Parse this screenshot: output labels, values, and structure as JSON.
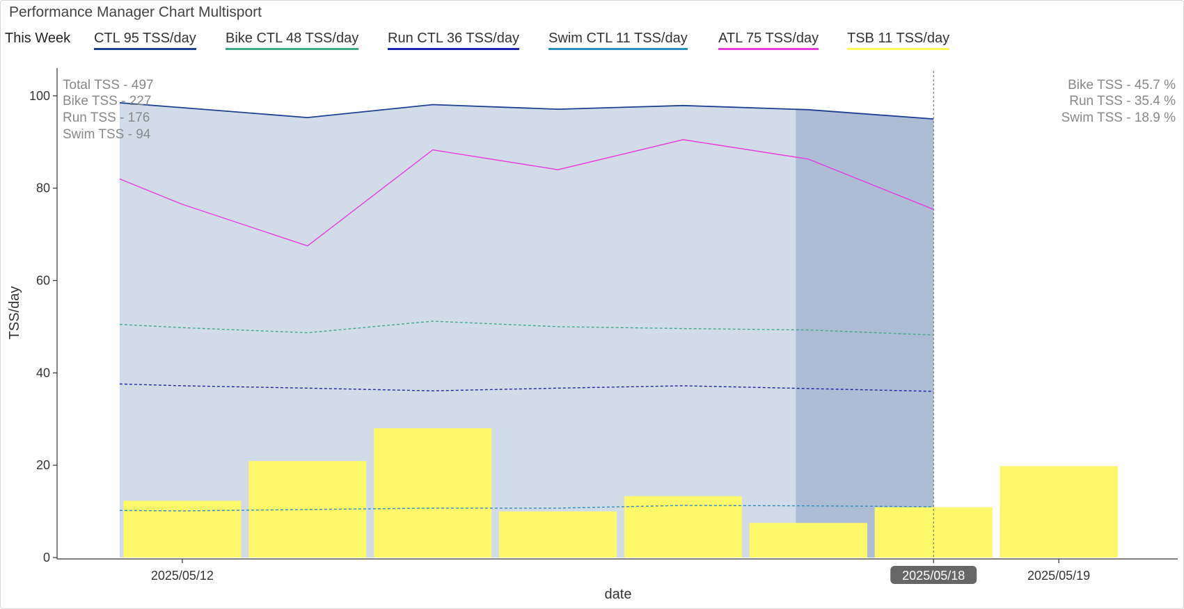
{
  "title": "Performance Manager Chart Multisport",
  "legend": {
    "week_label": "This Week",
    "items": [
      {
        "label": "CTL  95 TSS/day",
        "color": "#1c3f94"
      },
      {
        "label": "Bike CTL  48 TSS/day",
        "color": "#3daa85"
      },
      {
        "label": "Run CTL  36 TSS/day",
        "color": "#1a22b0"
      },
      {
        "label": "Swim CTL  11 TSS/day",
        "color": "#2b8cbe"
      },
      {
        "label": "ATL  75 TSS/day",
        "color": "#e83ae0"
      },
      {
        "label": "TSB  11 TSS/day",
        "color": "#ffff55"
      }
    ]
  },
  "stats_left": [
    "Total TSS - 497",
    "Bike TSS - 227",
    "Run TSS - 176",
    "Swim TSS - 94"
  ],
  "stats_right": [
    "Bike TSS - 45.7 %",
    "Run TSS - 35.4 %",
    "Swim TSS - 18.9 %"
  ],
  "chart_data": {
    "type": "line",
    "xlabel": "date",
    "ylabel": "TSS/day",
    "ylim": [
      0,
      106
    ],
    "xlim": [
      0,
      8.95
    ],
    "y_ticks": [
      0,
      20,
      40,
      60,
      80,
      100
    ],
    "x_ticks": [
      {
        "x": 1,
        "label": "2025/05/12",
        "highlight": false
      },
      {
        "x": 7,
        "label": "2025/05/18",
        "highlight": true
      },
      {
        "x": 8,
        "label": "2025/05/19",
        "highlight": false
      }
    ],
    "current_day": 7,
    "highlight_band": [
      6,
      7
    ],
    "series": [
      {
        "name": "CTL",
        "style": "solid",
        "fill": true,
        "color": "#1c3f94",
        "x": [
          0.5,
          2,
          3,
          4,
          5,
          6,
          7
        ],
        "values": [
          98.5,
          95.3,
          98.1,
          97.1,
          97.9,
          97.0,
          95.0
        ]
      },
      {
        "name": "ATL",
        "style": "solid",
        "fill": false,
        "color": "#e83ae0",
        "x": [
          0.5,
          1,
          2,
          3,
          4,
          5,
          6,
          7
        ],
        "values": [
          82,
          76.5,
          67.5,
          88.3,
          84.0,
          90.5,
          86.3,
          75.4
        ]
      },
      {
        "name": "Bike CTL",
        "style": "dashed",
        "fill": false,
        "color": "#3daa85",
        "x": [
          0.5,
          1,
          2,
          3,
          4,
          5,
          6,
          7
        ],
        "values": [
          50.5,
          49.8,
          48.7,
          51.2,
          50.0,
          49.6,
          49.3,
          48.2
        ]
      },
      {
        "name": "Run CTL",
        "style": "dashed",
        "fill": false,
        "color": "#1a22b0",
        "x": [
          0.5,
          1,
          2,
          3,
          4,
          5,
          6,
          7
        ],
        "values": [
          37.6,
          37.2,
          36.7,
          36.1,
          36.7,
          37.2,
          36.6,
          36.0
        ]
      },
      {
        "name": "Swim CTL",
        "style": "dashed",
        "fill": false,
        "color": "#2b8cbe",
        "x": [
          0.5,
          1,
          2,
          3,
          4,
          5,
          6,
          7
        ],
        "values": [
          10.2,
          10.1,
          10.4,
          10.7,
          10.7,
          11.3,
          11.2,
          11.0
        ]
      }
    ],
    "bars": {
      "name": "TSB",
      "color": "#fdf86a",
      "x": [
        1,
        2,
        3,
        4,
        5,
        6,
        7,
        8
      ],
      "values": [
        12.3,
        20.9,
        28.0,
        10.0,
        13.3,
        7.5,
        10.9,
        19.8
      ]
    }
  }
}
